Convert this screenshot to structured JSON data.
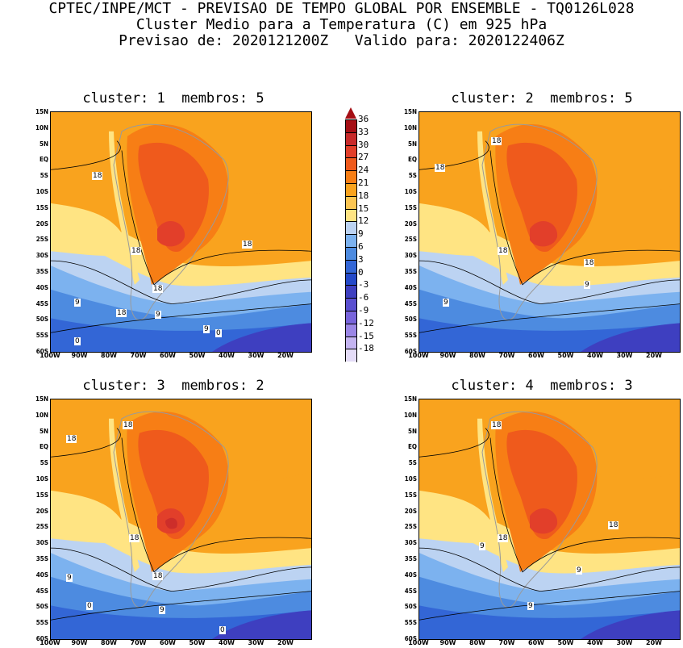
{
  "header": {
    "line1": "CPTEC/INPE/MCT - PREVISAO DE TEMPO GLOBAL POR ENSEMBLE - TQ0126L028",
    "line2": "Cluster Medio para a Temperatura (C) em 925 hPa",
    "line3": "Previsao de: 2020121200Z   Valido para: 2020122406Z"
  },
  "panels": [
    {
      "title": "cluster: 1  membros: 5",
      "contour_labels": [
        "18",
        "18",
        "18",
        "18",
        "18",
        "9",
        "9",
        "9",
        "0",
        "0"
      ]
    },
    {
      "title": "cluster: 2  membros: 5",
      "contour_labels": [
        "18",
        "18",
        "18",
        "18",
        "9",
        "9"
      ]
    },
    {
      "title": "cluster: 3  membros: 2",
      "contour_labels": [
        "18",
        "18",
        "18",
        "18",
        "9",
        "9",
        "0",
        "0"
      ]
    },
    {
      "title": "cluster: 4  membros: 3",
      "contour_labels": [
        "18",
        "18",
        "18",
        "9",
        "9",
        "9"
      ]
    }
  ],
  "axes": {
    "lat_ticks": [
      "15N",
      "10N",
      "5N",
      "EQ",
      "5S",
      "10S",
      "15S",
      "20S",
      "25S",
      "30S",
      "35S",
      "40S",
      "45S",
      "50S",
      "55S",
      "60S"
    ],
    "lon_ticks": [
      "100W",
      "90W",
      "80W",
      "70W",
      "60W",
      "50W",
      "40W",
      "30W",
      "20W"
    ]
  },
  "colorbar": {
    "labels": [
      "36",
      "33",
      "30",
      "27",
      "24",
      "21",
      "18",
      "15",
      "12",
      "9",
      "6",
      "3",
      "0",
      "-3",
      "-6",
      "-9",
      "-12",
      "-15",
      "-18"
    ],
    "colors": [
      "#a50f15",
      "#c82a2a",
      "#e23f2a",
      "#ef5a1c",
      "#f77e15",
      "#f9a31e",
      "#fbc552",
      "#ffe483",
      "#bcd3f2",
      "#7cb2ef",
      "#4d8be0",
      "#3366d6",
      "#2449c9",
      "#3e3fc0",
      "#5a4fd0",
      "#7864db",
      "#9b86e6",
      "#c4b4f0",
      "#e4dcf7"
    ]
  }
}
